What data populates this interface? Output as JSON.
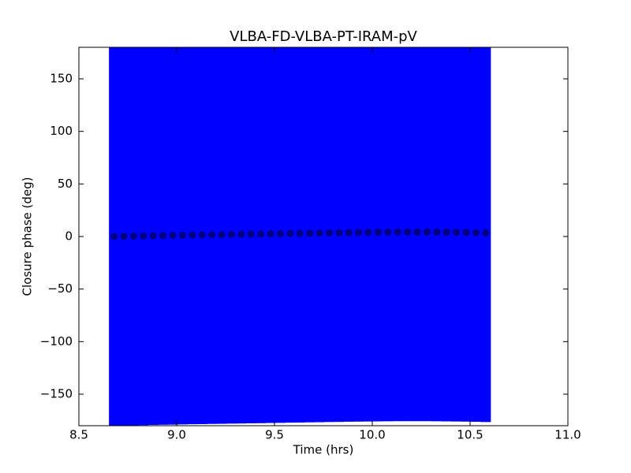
{
  "chart_data": {
    "type": "errorbar-scatter",
    "title": "VLBA-FD-VLBA-PT-IRAM-pV",
    "x_label": "Time (hrs)",
    "y_label": "Closure phase (deg)",
    "series": [
      {
        "color": "#000080",
        "error_color": "#0000ff",
        "x": [
          8.68,
          8.73,
          8.78,
          8.83,
          8.88,
          8.93,
          8.98,
          9.03,
          9.08,
          9.13,
          9.18,
          9.23,
          9.28,
          9.33,
          9.38,
          9.43,
          9.48,
          9.53,
          9.58,
          9.63,
          9.68,
          9.73,
          9.78,
          9.83,
          9.88,
          9.93,
          9.98,
          10.03,
          10.08,
          10.13,
          10.18,
          10.23,
          10.28,
          10.33,
          10.38,
          10.43,
          10.48,
          10.53,
          10.58
        ],
        "values": [
          0.0,
          0.2,
          0.4,
          0.5,
          0.7,
          0.9,
          1.0,
          1.2,
          1.4,
          1.5,
          1.7,
          1.8,
          2.0,
          2.1,
          2.3,
          2.4,
          2.6,
          2.7,
          2.9,
          3.0,
          3.2,
          3.3,
          3.5,
          3.6,
          3.8,
          3.9,
          4.0,
          4.1,
          4.2,
          4.3,
          4.3,
          4.3,
          4.3,
          4.2,
          4.1,
          4.0,
          3.9,
          3.7,
          3.5
        ],
        "yerr": [
          180,
          180,
          180,
          180,
          180,
          180,
          180,
          180,
          180,
          180,
          180,
          180,
          180,
          180,
          180,
          180,
          180,
          180,
          180,
          180,
          180,
          180,
          180,
          180,
          180,
          180,
          180,
          180,
          180,
          180,
          180,
          180,
          180,
          180,
          180,
          180,
          180,
          180,
          180
        ]
      }
    ],
    "xlim": [
      8.5,
      11.0
    ],
    "xticks": [
      8.5,
      {
        "value": 9,
        "label": "9.0"
      },
      9.5,
      {
        "value": 10,
        "label": "10.0"
      },
      10.5,
      {
        "value": 11,
        "label": "11.0"
      }
    ],
    "ylim": [
      -180,
      180
    ],
    "yticks": [
      {
        "value": -150,
        "label": "−150"
      },
      {
        "value": -100,
        "label": "−100"
      },
      {
        "value": -50,
        "label": "−50"
      },
      0,
      50,
      100,
      150
    ]
  }
}
